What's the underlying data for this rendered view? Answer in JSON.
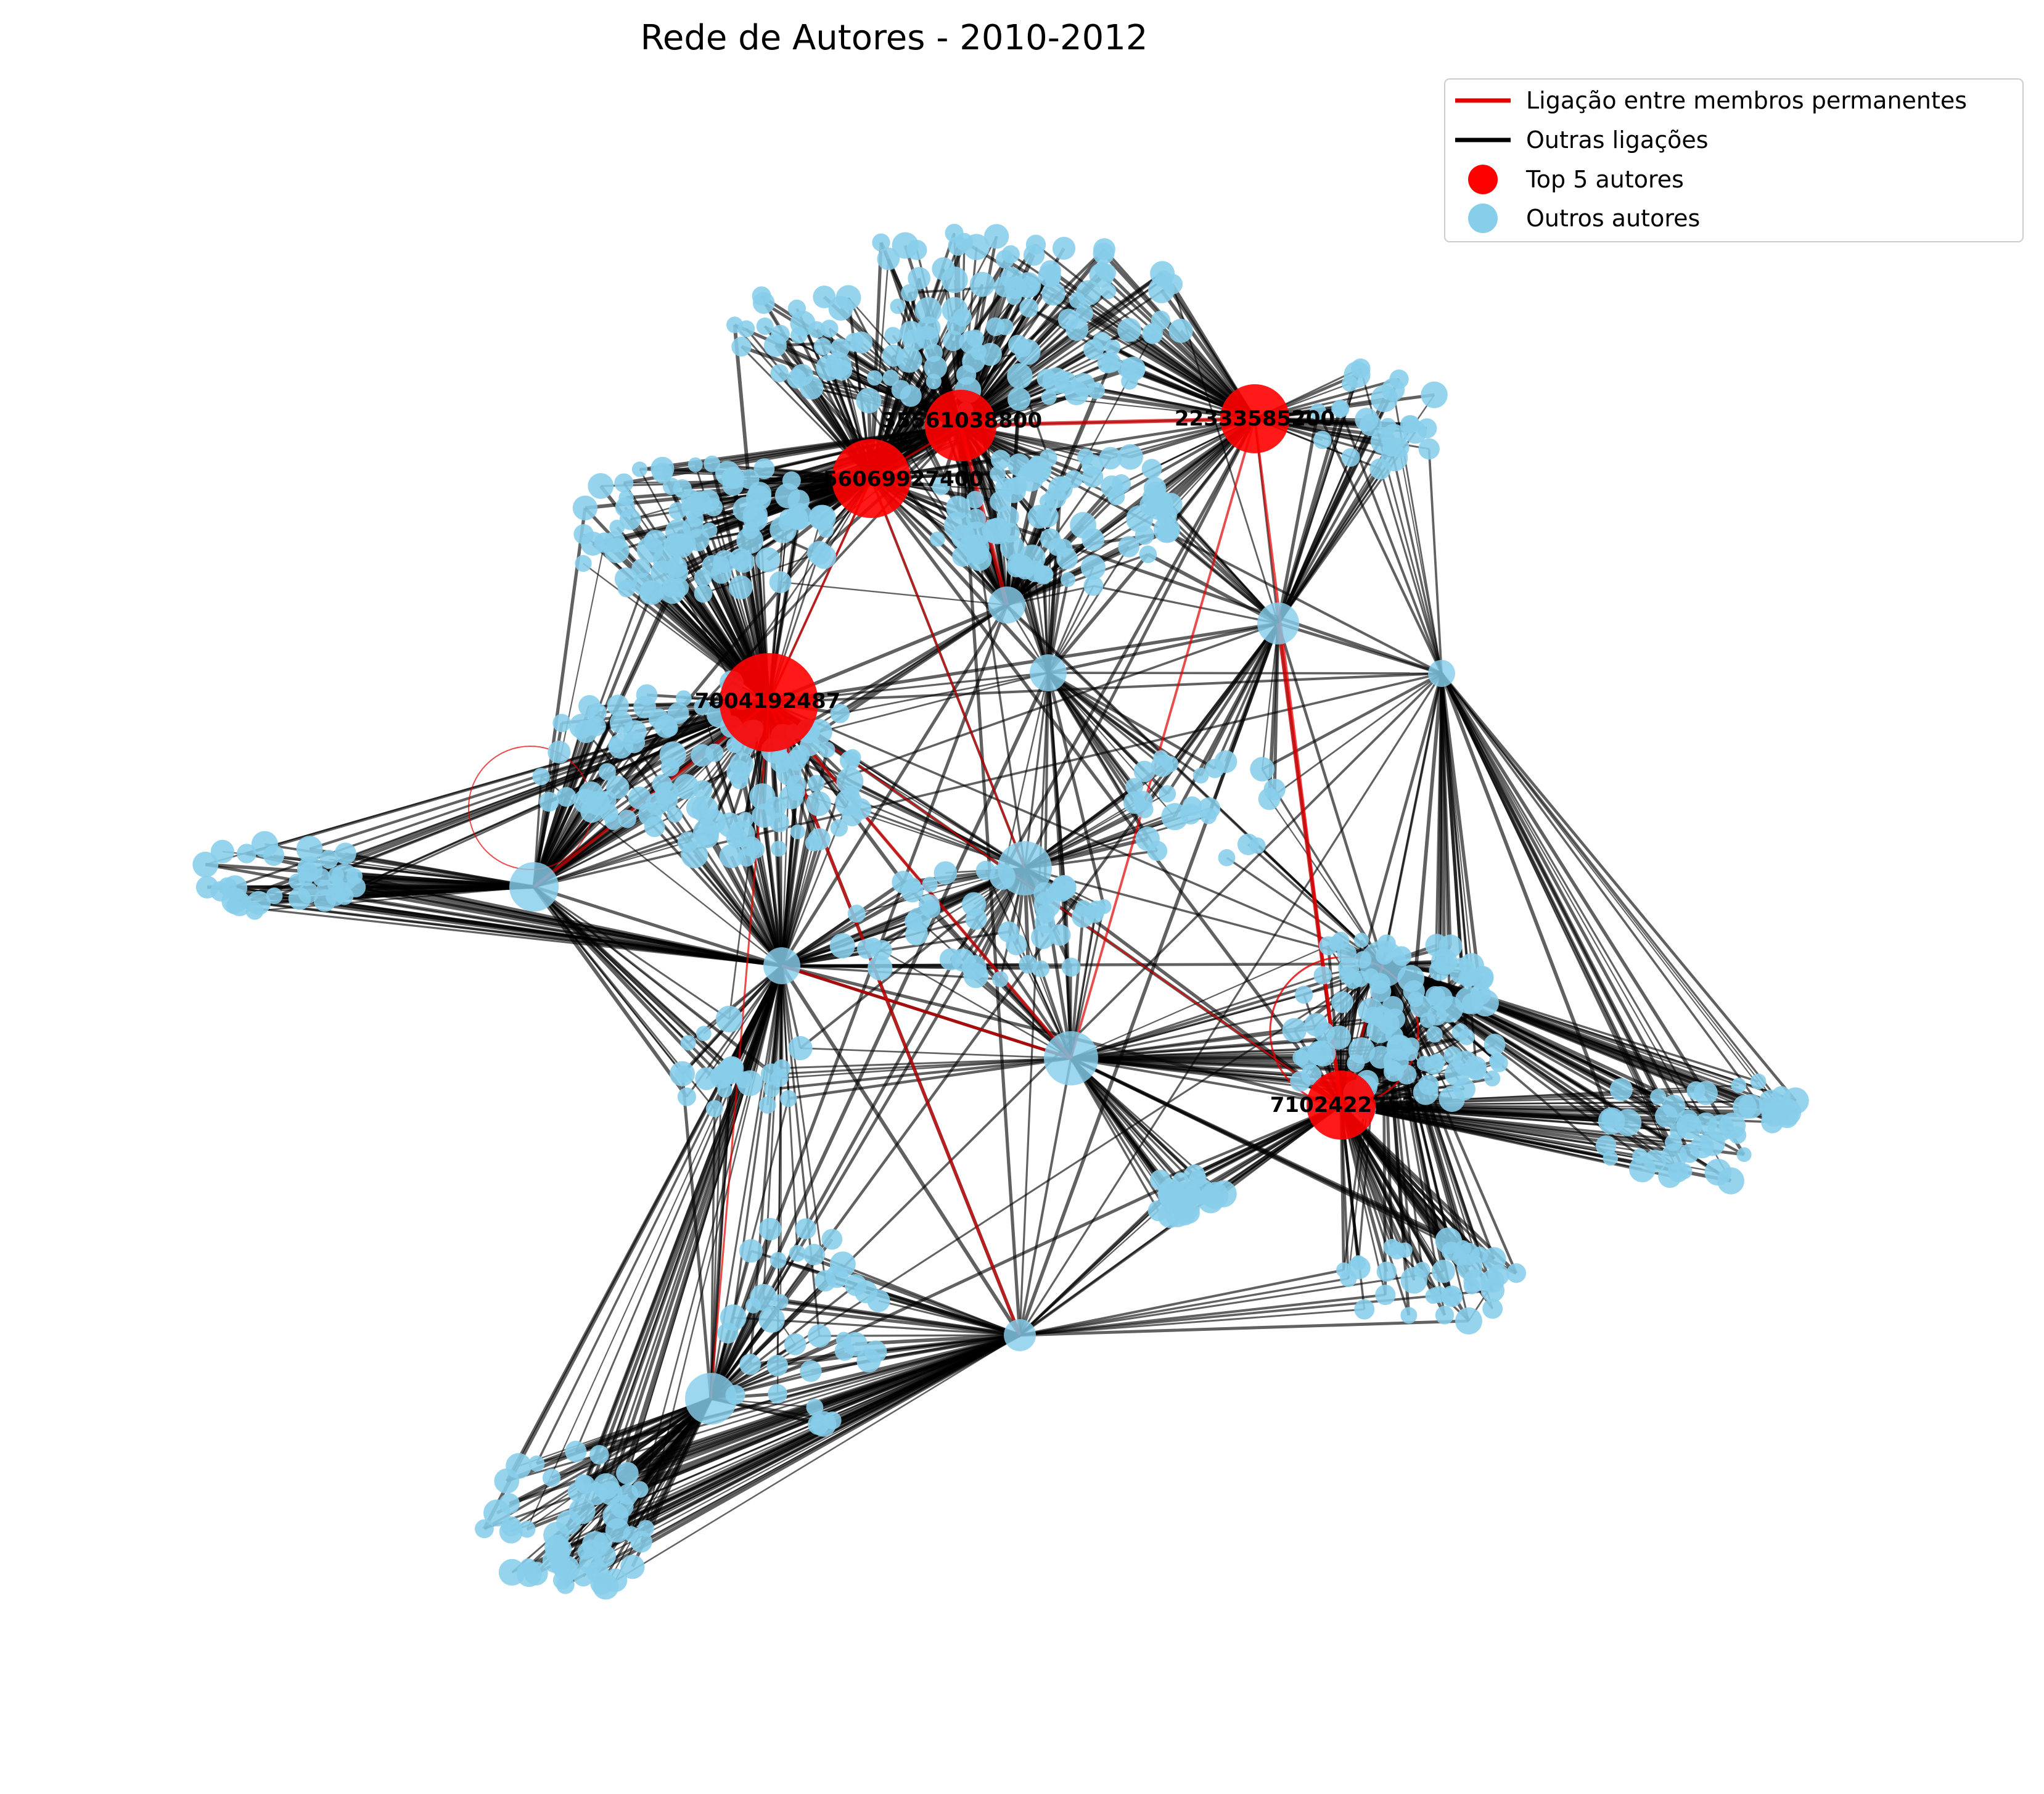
{
  "figure": {
    "title": "Rede de Autores - 2010-2012"
  },
  "legend": {
    "items": [
      {
        "label": "Ligação entre membros permanentes",
        "kind": "line",
        "color": "#e00000"
      },
      {
        "label": "Outras ligações",
        "kind": "line",
        "color": "#000000"
      },
      {
        "label": "Top 5 autores",
        "kind": "marker",
        "color": "#ff0000"
      },
      {
        "label": "Outros autores",
        "kind": "marker",
        "color": "#87ceeb"
      }
    ]
  },
  "colors": {
    "top_author": "#ff0000",
    "other_author": "#87ceeb",
    "permanent_edge": "#e00000",
    "other_edge": "#000000"
  },
  "top_authors": [
    {
      "id": "35561038800",
      "label": "35561038800"
    },
    {
      "id": "22333585200",
      "label": "22333585200"
    },
    {
      "id": "56069927400",
      "label": "56069927400"
    },
    {
      "id": "7004192487",
      "label": "7004192487"
    },
    {
      "id": "7102422753",
      "label": "7102422753"
    }
  ]
}
